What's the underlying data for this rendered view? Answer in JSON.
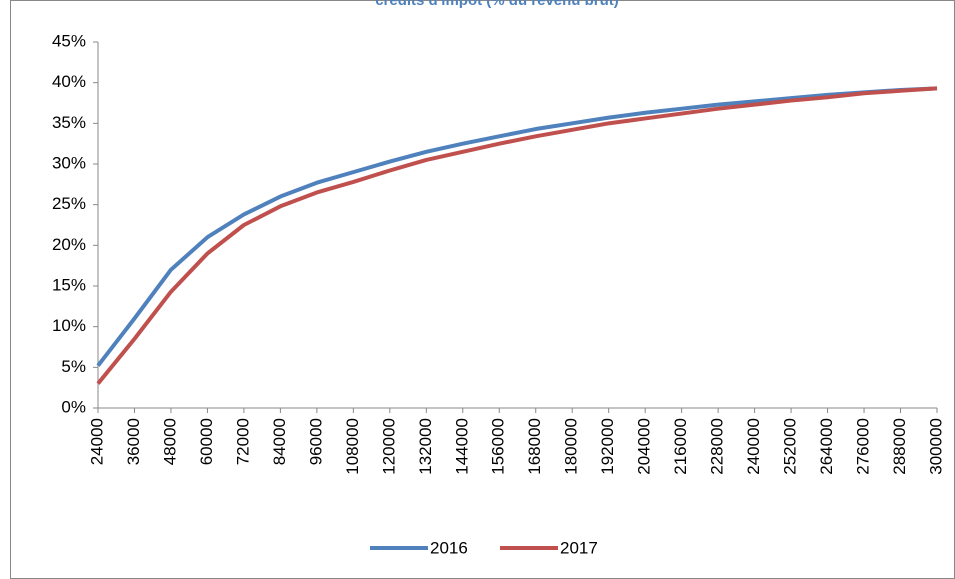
{
  "chart_data": {
    "type": "line",
    "title": "crédits d'impôt (% du revenu brut)",
    "x": [
      24000,
      36000,
      48000,
      60000,
      72000,
      84000,
      96000,
      108000,
      120000,
      132000,
      144000,
      156000,
      168000,
      180000,
      192000,
      204000,
      216000,
      228000,
      240000,
      252000,
      264000,
      276000,
      288000,
      300000
    ],
    "series": [
      {
        "name": "2016",
        "color": "#4f81bd",
        "values": [
          5.2,
          11,
          17,
          21,
          23.8,
          26,
          27.7,
          29,
          30.3,
          31.5,
          32.5,
          33.4,
          34.3,
          35,
          35.7,
          36.3,
          36.8,
          37.3,
          37.7,
          38.1,
          38.5,
          38.8,
          39.1,
          39.3
        ]
      },
      {
        "name": "2017",
        "color": "#c0504d",
        "values": [
          3,
          8.5,
          14.3,
          19,
          22.5,
          24.8,
          26.5,
          27.8,
          29.2,
          30.5,
          31.5,
          32.5,
          33.4,
          34.2,
          35,
          35.6,
          36.2,
          36.8,
          37.3,
          37.8,
          38.2,
          38.7,
          39.0,
          39.3
        ]
      }
    ],
    "xlim": [
      24000,
      300000
    ],
    "xticks": [
      24000,
      36000,
      48000,
      60000,
      72000,
      84000,
      96000,
      108000,
      120000,
      132000,
      144000,
      156000,
      168000,
      180000,
      192000,
      204000,
      216000,
      228000,
      240000,
      252000,
      264000,
      276000,
      288000,
      300000
    ],
    "ylim": [
      0,
      45
    ],
    "yticks": [
      {
        "value": 0,
        "label": "0%"
      },
      {
        "value": 5,
        "label": "5%"
      },
      {
        "value": 10,
        "label": "10%"
      },
      {
        "value": 15,
        "label": "15%"
      },
      {
        "value": 20,
        "label": "20%"
      },
      {
        "value": 25,
        "label": "25%"
      },
      {
        "value": 30,
        "label": "30%"
      },
      {
        "value": 35,
        "label": "35%"
      },
      {
        "value": 40,
        "label": "40%"
      },
      {
        "value": 45,
        "label": "45%"
      }
    ],
    "legend": "bottom"
  }
}
